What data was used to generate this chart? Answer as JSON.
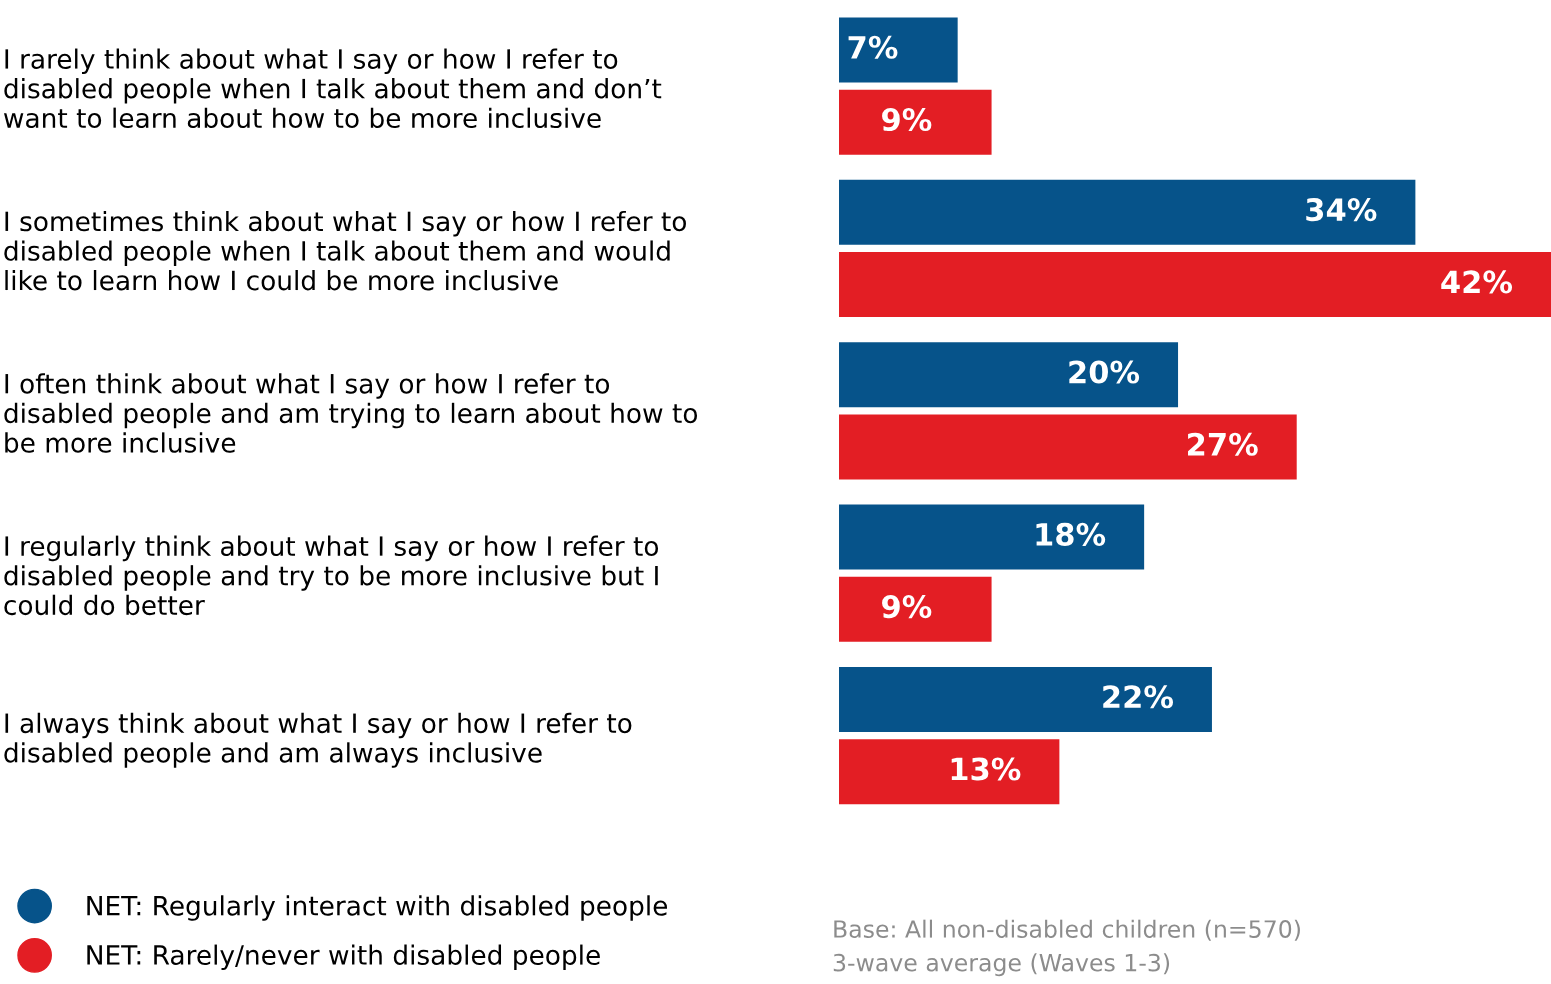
{
  "chart_data": {
    "type": "bar",
    "orientation": "horizontal",
    "categories": [
      "I rarely think about what I say or how I refer to\ndisabled people when I talk about them and don’t\nwant to learn about how to be more inclusive",
      "I sometimes think about what I say or how I refer to\ndisabled people when I talk about them and would\nlike to learn how I could be more inclusive",
      "I often think about what I say or how I refer to\ndisabled people and am trying to learn about how to\nbe more inclusive",
      "I regularly think about what I say or how I refer to\ndisabled people and try to be more inclusive but I\ncould do better",
      "I always think about what I say or how I refer to\ndisabled people and am always inclusive"
    ],
    "series": [
      {
        "name": "NET: Regularly interact with disabled people",
        "color": "#06538a",
        "values": [
          7,
          34,
          20,
          18,
          22
        ],
        "value_labels": [
          "7%",
          "34%",
          "20%",
          "18%",
          "22%"
        ]
      },
      {
        "name": "NET: Rarely/never with disabled people",
        "color": "#e31e24",
        "values": [
          9,
          42,
          27,
          9,
          13
        ],
        "value_labels": [
          "9%",
          "42%",
          "27%",
          "9%",
          "13%"
        ]
      }
    ],
    "legend": "bottom left",
    "tick_labels": "y",
    "annotations": [
      "Base: All non-disabled children (n=570)\n3-wave average (Waves 1-3)"
    ]
  }
}
